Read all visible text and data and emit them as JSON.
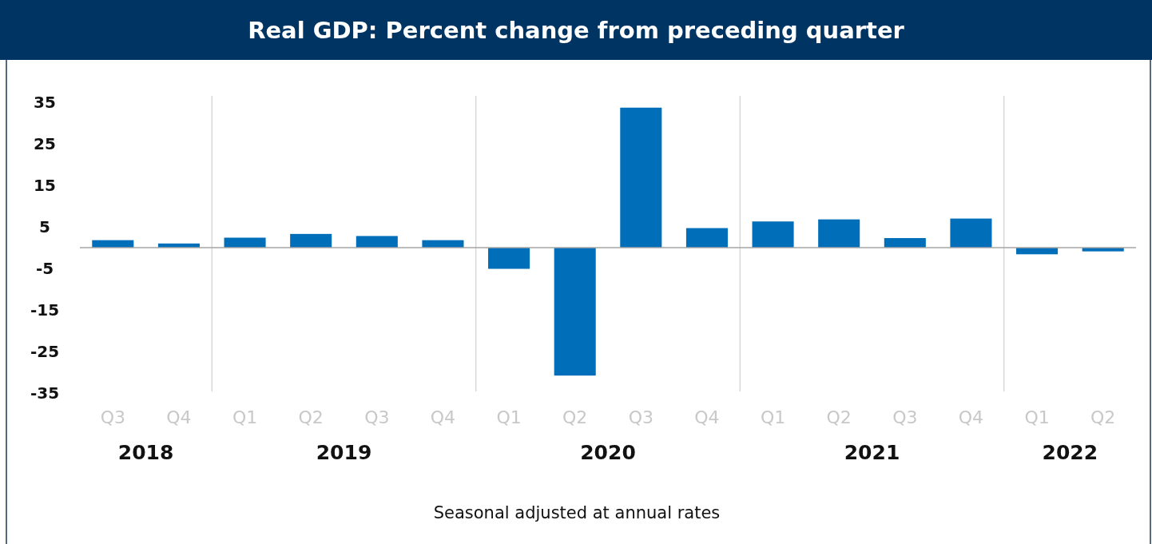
{
  "chart_data": {
    "type": "bar",
    "title": "Real GDP: Percent change from preceding quarter",
    "xlabel": "Seasonal adjusted at annual rates",
    "categories": [
      "Q3",
      "Q4",
      "Q1",
      "Q2",
      "Q3",
      "Q4",
      "Q1",
      "Q2",
      "Q3",
      "Q4",
      "Q1",
      "Q2",
      "Q3",
      "Q4",
      "Q1",
      "Q2"
    ],
    "values": [
      1.8,
      1.0,
      2.4,
      3.3,
      2.8,
      1.8,
      -5.1,
      -30.8,
      33.7,
      4.7,
      6.3,
      6.8,
      2.3,
      7.0,
      -1.6,
      -0.9
    ],
    "color": "#006eb8",
    "ylim": [
      -35,
      35
    ],
    "yticks": [
      -35,
      -25,
      -15,
      -5,
      5,
      15,
      25,
      35
    ],
    "grid": false,
    "annotations": [
      "2018",
      "2019",
      "2020",
      "2021",
      "2022"
    ]
  }
}
